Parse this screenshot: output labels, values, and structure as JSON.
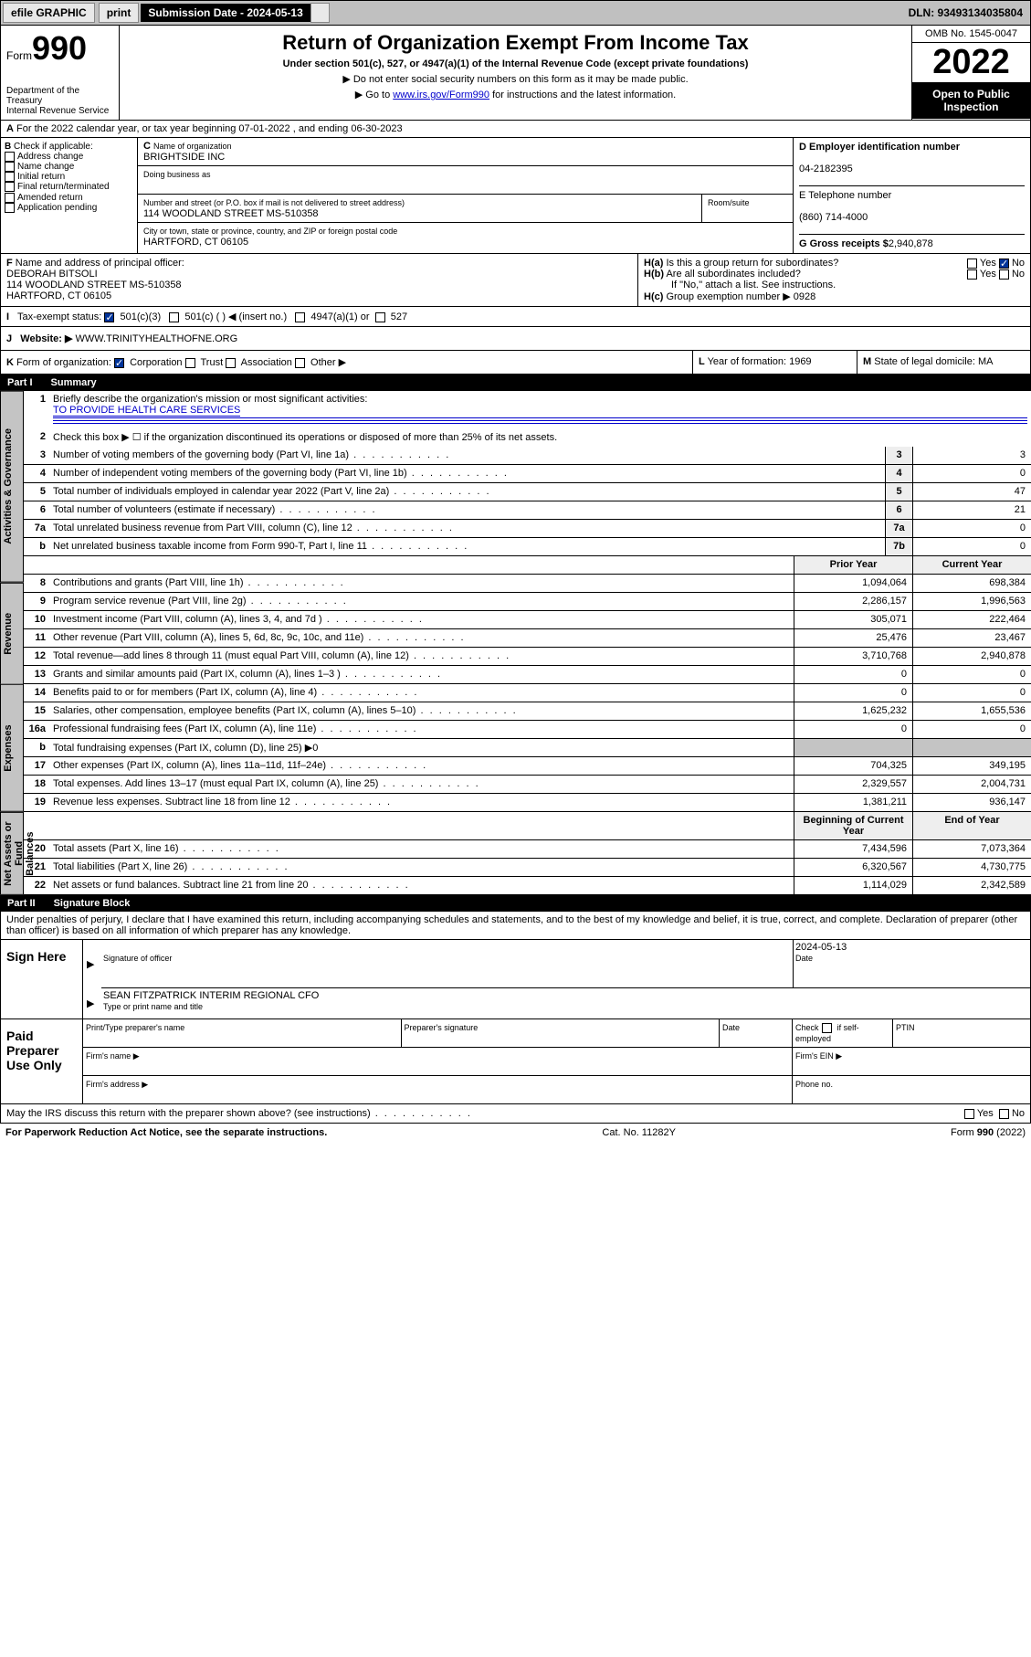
{
  "topbar": {
    "efile": "efile GRAPHIC",
    "print": "print",
    "subdate_label": "Submission Date - 2024-05-13",
    "dln_label": "DLN: 93493134035804"
  },
  "header": {
    "form_word": "Form",
    "form_num": "990",
    "title": "Return of Organization Exempt From Income Tax",
    "subtitle": "Under section 501(c), 527, or 4947(a)(1) of the Internal Revenue Code (except private foundations)",
    "note1": "▶ Do not enter social security numbers on this form as it may be made public.",
    "note2_pre": "▶ Go to ",
    "note2_link": "www.irs.gov/Form990",
    "note2_post": " for instructions and the latest information.",
    "dept": "Department of the Treasury",
    "irs": "Internal Revenue Service",
    "omb": "OMB No. 1545-0047",
    "year": "2022",
    "inspection1": "Open to Public",
    "inspection2": "Inspection"
  },
  "section_a": "For the 2022 calendar year, or tax year beginning 07-01-2022  , and ending 06-30-2023",
  "block_b": {
    "label": "Check if applicable:",
    "items": [
      "Address change",
      "Name change",
      "Initial return",
      "Final return/terminated",
      "Amended return",
      "Application pending"
    ]
  },
  "block_c": {
    "name_label": "Name of organization",
    "name": "BRIGHTSIDE INC",
    "dba_label": "Doing business as",
    "street_label": "Number and street (or P.O. box if mail is not delivered to street address)",
    "room_label": "Room/suite",
    "street": "114 WOODLAND STREET MS-510358",
    "city_label": "City or town, state or province, country, and ZIP or foreign postal code",
    "city": "HARTFORD, CT  06105"
  },
  "block_d": {
    "ein_label": "Employer identification number",
    "ein": "04-2182395",
    "phone_label": "E Telephone number",
    "phone": "(860) 714-4000",
    "gross_label": "G Gross receipts $",
    "gross": "2,940,878"
  },
  "block_f": {
    "label": "Name and address of principal officer:",
    "name": "DEBORAH BITSOLI",
    "addr1": "114 WOODLAND STREET MS-510358",
    "addr2": "HARTFORD, CT  06105"
  },
  "block_h": {
    "ha": "Is this a group return for subordinates?",
    "hb": "Are all subordinates included?",
    "hb_note": "If \"No,\" attach a list. See instructions.",
    "hc_label": "Group exemption number ▶",
    "hc_val": "0928",
    "yes": "Yes",
    "no": "No"
  },
  "tax_exempt": {
    "label": "Tax-exempt status:",
    "opt1": "501(c)(3)",
    "opt2": "501(c) (  ) ◀ (insert no.)",
    "opt3": "4947(a)(1) or",
    "opt4": "527"
  },
  "website": {
    "label": "Website: ▶",
    "value": "WWW.TRINITYHEALTHOFNE.ORG"
  },
  "block_k": {
    "label": "Form of organization:",
    "corp": "Corporation",
    "trust": "Trust",
    "assoc": "Association",
    "other": "Other ▶"
  },
  "block_l": {
    "label": "Year of formation:",
    "value": "1969"
  },
  "block_m": {
    "label": "State of legal domicile:",
    "value": "MA"
  },
  "part1": {
    "label": "Part I",
    "title": "Summary",
    "line1_label": "Briefly describe the organization's mission or most significant activities:",
    "line1_value": "TO PROVIDE HEALTH CARE SERVICES",
    "line2": "Check this box ▶ ☐ if the organization discontinued its operations or disposed of more than 25% of its net assets.",
    "lines_a": [
      {
        "n": "3",
        "t": "Number of voting members of the governing body (Part VI, line 1a)",
        "box": "3",
        "v": "3"
      },
      {
        "n": "4",
        "t": "Number of independent voting members of the governing body (Part VI, line 1b)",
        "box": "4",
        "v": "0"
      },
      {
        "n": "5",
        "t": "Total number of individuals employed in calendar year 2022 (Part V, line 2a)",
        "box": "5",
        "v": "47"
      },
      {
        "n": "6",
        "t": "Total number of volunteers (estimate if necessary)",
        "box": "6",
        "v": "21"
      },
      {
        "n": "7a",
        "t": "Total unrelated business revenue from Part VIII, column (C), line 12",
        "box": "7a",
        "v": "0"
      },
      {
        "n": "b",
        "t": "Net unrelated business taxable income from Form 990-T, Part I, line 11",
        "box": "7b",
        "v": "0"
      }
    ],
    "col_prior": "Prior Year",
    "col_current": "Current Year",
    "lines_b": [
      {
        "n": "8",
        "t": "Contributions and grants (Part VIII, line 1h)",
        "p": "1,094,064",
        "c": "698,384"
      },
      {
        "n": "9",
        "t": "Program service revenue (Part VIII, line 2g)",
        "p": "2,286,157",
        "c": "1,996,563"
      },
      {
        "n": "10",
        "t": "Investment income (Part VIII, column (A), lines 3, 4, and 7d )",
        "p": "305,071",
        "c": "222,464"
      },
      {
        "n": "11",
        "t": "Other revenue (Part VIII, column (A), lines 5, 6d, 8c, 9c, 10c, and 11e)",
        "p": "25,476",
        "c": "23,467"
      },
      {
        "n": "12",
        "t": "Total revenue—add lines 8 through 11 (must equal Part VIII, column (A), line 12)",
        "p": "3,710,768",
        "c": "2,940,878"
      }
    ],
    "lines_c": [
      {
        "n": "13",
        "t": "Grants and similar amounts paid (Part IX, column (A), lines 1–3 )",
        "p": "0",
        "c": "0"
      },
      {
        "n": "14",
        "t": "Benefits paid to or for members (Part IX, column (A), line 4)",
        "p": "0",
        "c": "0"
      },
      {
        "n": "15",
        "t": "Salaries, other compensation, employee benefits (Part IX, column (A), lines 5–10)",
        "p": "1,625,232",
        "c": "1,655,536"
      },
      {
        "n": "16a",
        "t": "Professional fundraising fees (Part IX, column (A), line 11e)",
        "p": "0",
        "c": "0"
      }
    ],
    "line16b": "Total fundraising expenses (Part IX, column (D), line 25) ▶0",
    "lines_d": [
      {
        "n": "17",
        "t": "Other expenses (Part IX, column (A), lines 11a–11d, 11f–24e)",
        "p": "704,325",
        "c": "349,195"
      },
      {
        "n": "18",
        "t": "Total expenses. Add lines 13–17 (must equal Part IX, column (A), line 25)",
        "p": "2,329,557",
        "c": "2,004,731"
      },
      {
        "n": "19",
        "t": "Revenue less expenses. Subtract line 18 from line 12",
        "p": "1,381,211",
        "c": "936,147"
      }
    ],
    "col_beg": "Beginning of Current Year",
    "col_end": "End of Year",
    "lines_e": [
      {
        "n": "20",
        "t": "Total assets (Part X, line 16)",
        "p": "7,434,596",
        "c": "7,073,364"
      },
      {
        "n": "21",
        "t": "Total liabilities (Part X, line 26)",
        "p": "6,320,567",
        "c": "4,730,775"
      },
      {
        "n": "22",
        "t": "Net assets or fund balances. Subtract line 21 from line 20",
        "p": "1,114,029",
        "c": "2,342,589"
      }
    ]
  },
  "vtabs": {
    "gov": "Activities & Governance",
    "rev": "Revenue",
    "exp": "Expenses",
    "net": "Net Assets or Fund Balances"
  },
  "part2": {
    "label": "Part II",
    "title": "Signature Block",
    "declaration": "Under penalties of perjury, I declare that I have examined this return, including accompanying schedules and statements, and to the best of my knowledge and belief, it is true, correct, and complete. Declaration of preparer (other than officer) is based on all information of which preparer has any knowledge."
  },
  "sign": {
    "here": "Sign Here",
    "sig_label": "Signature of officer",
    "date_label": "Date",
    "date": "2024-05-13",
    "name": "SEAN FITZPATRICK INTERIM REGIONAL CFO",
    "name_label": "Type or print name and title"
  },
  "preparer": {
    "label": "Paid Preparer Use Only",
    "col1": "Print/Type preparer's name",
    "col2": "Preparer's signature",
    "col3": "Date",
    "col4a": "Check",
    "col4b": "if self-employed",
    "col5": "PTIN",
    "firm_name": "Firm's name   ▶",
    "firm_ein": "Firm's EIN ▶",
    "firm_addr": "Firm's address ▶",
    "phone": "Phone no."
  },
  "discuss": {
    "text": "May the IRS discuss this return with the preparer shown above? (see instructions)",
    "yes": "Yes",
    "no": "No"
  },
  "footer": {
    "left": "For Paperwork Reduction Act Notice, see the separate instructions.",
    "mid": "Cat. No. 11282Y",
    "right": "Form 990 (2022)"
  },
  "letters": {
    "A": "A",
    "B": "B",
    "C": "C",
    "D": "D",
    "F": "F",
    "H_a": "H(a)",
    "H_b": "H(b)",
    "H_c": "H(c)",
    "I": "I",
    "J": "J",
    "K": "K",
    "L": "L",
    "M": "M",
    "b": "b"
  }
}
